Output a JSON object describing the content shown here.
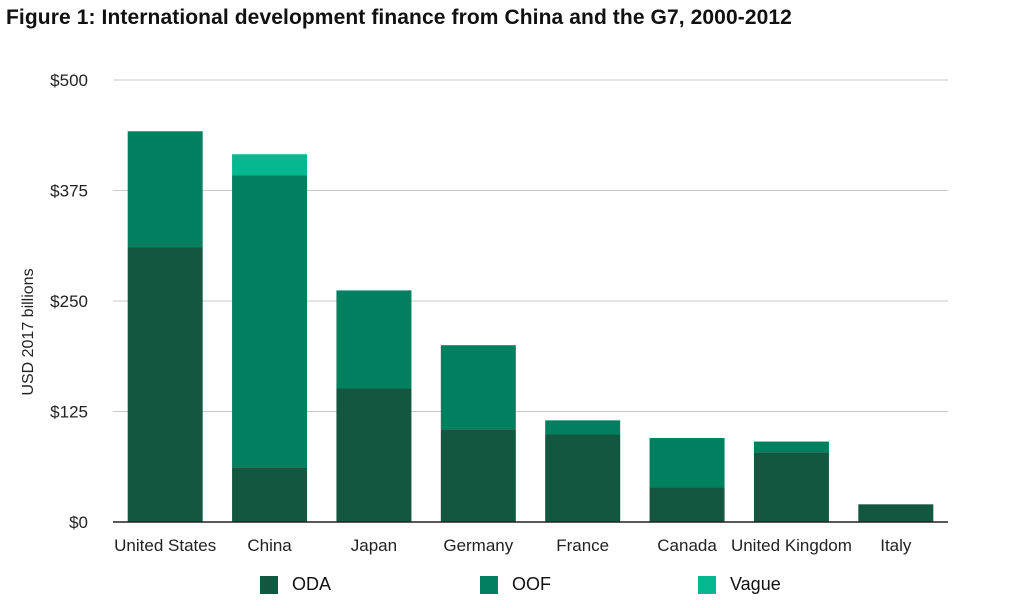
{
  "title": "Figure 1: International development finance from China and the G7, 2000-2012",
  "colors": {
    "ODA": "#135741",
    "OOF": "#00805f",
    "Vague": "#05b88f",
    "grid": "#c8c8c8",
    "axis": "#222222"
  },
  "chart_data": {
    "type": "bar",
    "stacked": true,
    "title": "Figure 1: International development finance from China and the G7, 2000-2012",
    "xlabel": "",
    "ylabel": "USD 2017 billions",
    "ylim": [
      0,
      500
    ],
    "yticks": [
      0,
      125,
      250,
      375,
      500
    ],
    "ytick_labels": [
      "$0",
      "$125",
      "$250",
      "$375",
      "$500"
    ],
    "grid": true,
    "legend_position": "bottom",
    "categories": [
      "United States",
      "China",
      "Japan",
      "Germany",
      "France",
      "Canada",
      "United Kingdom",
      "Italy"
    ],
    "series": [
      {
        "name": "ODA",
        "values": [
          311,
          62,
          151,
          105,
          99,
          39,
          79,
          20
        ]
      },
      {
        "name": "OOF",
        "values": [
          131,
          330,
          111,
          95,
          16,
          56,
          12,
          0
        ]
      },
      {
        "name": "Vague",
        "values": [
          0,
          24,
          0,
          0,
          0,
          0,
          0,
          0
        ]
      }
    ]
  }
}
